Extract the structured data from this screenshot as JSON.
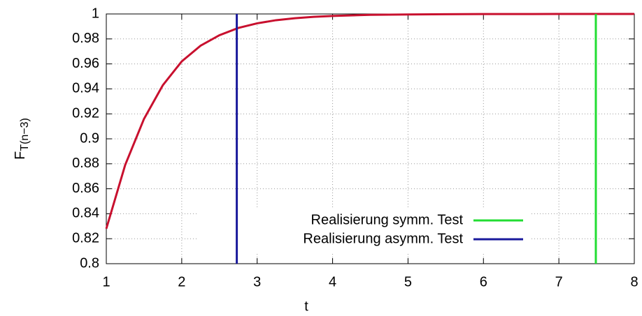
{
  "chart_data": {
    "type": "line",
    "xlabel": "t",
    "ylabel": "F",
    "ylabel_sub": "T(n−3)",
    "x": [
      1,
      1.25,
      1.5,
      1.75,
      2,
      2.25,
      2.5,
      2.75,
      3,
      3.25,
      3.5,
      3.75,
      4,
      4.5,
      5,
      5.5,
      6,
      7,
      8
    ],
    "series": [
      {
        "color": "#c8102e",
        "values": [
          0.828,
          0.879,
          0.916,
          0.943,
          0.962,
          0.9746,
          0.983,
          0.9888,
          0.9925,
          0.995,
          0.9966,
          0.9977,
          0.9984,
          0.9993,
          0.9996,
          0.9998,
          0.9999,
          0.99997,
          0.99999
        ]
      }
    ],
    "markers": [
      {
        "name": "Realisierung symm. Test",
        "color": "#22dd33",
        "x": 7.49
      },
      {
        "name": "Realisierung asymm. Test",
        "color": "#1a1a9c",
        "x": 2.73
      }
    ],
    "xlim": [
      1,
      8
    ],
    "xticks": [
      1,
      2,
      3,
      4,
      5,
      6,
      7,
      8
    ],
    "ylim": [
      0.8,
      1
    ],
    "yticks": [
      0.8,
      0.82,
      0.84,
      0.86,
      0.88,
      0.9,
      0.92,
      0.94,
      0.96,
      0.98,
      1
    ],
    "grid": true
  }
}
